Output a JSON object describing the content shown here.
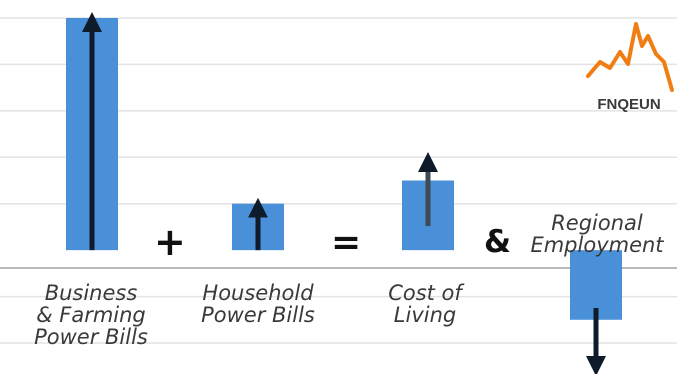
{
  "chart_data": {
    "type": "bar",
    "categories": [
      "Business\n& Farming\nPower Bills",
      "Household\nPower Bills",
      "Cost of\nLiving",
      "Regional\nEmployment"
    ],
    "values": [
      5,
      1,
      1.5,
      -1.5
    ],
    "directions": [
      "up",
      "up",
      "up",
      "down"
    ],
    "ylim": [
      -2,
      5
    ],
    "grid": true,
    "bar_color": "#4a90d9",
    "arrow_color": "#0d1b2a",
    "operators": [
      "+",
      "=",
      "&"
    ]
  },
  "logo": {
    "text": "FNQEUN",
    "color": "#f07d12"
  }
}
